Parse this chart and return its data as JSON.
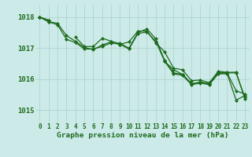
{
  "title": "Graphe pression niveau de la mer (hPa)",
  "hours": [
    0,
    1,
    2,
    3,
    4,
    5,
    6,
    7,
    8,
    9,
    10,
    11,
    12,
    13,
    14,
    15,
    16,
    17,
    18,
    19,
    20,
    21,
    22,
    23
  ],
  "ylim": [
    1014.6,
    1018.4
  ],
  "yticks": [
    1015,
    1016,
    1017,
    1018
  ],
  "bg_color": "#cceae8",
  "grid_color": "#aacfcc",
  "line_color": "#1e6b1e",
  "lines": [
    [
      1018.0,
      1017.85,
      1017.8,
      1017.4,
      1017.22,
      1017.02,
      1016.95,
      1017.1,
      1017.2,
      1017.15,
      1017.0,
      1017.5,
      1017.62,
      1017.3,
      1016.6,
      1016.2,
      1016.15,
      1015.85,
      1015.9,
      1015.85,
      1016.2,
      1016.2,
      1015.62,
      1015.52
    ],
    [
      1018.0,
      1017.85,
      1017.75,
      1017.28,
      1017.18,
      1016.97,
      1016.97,
      1017.05,
      1017.17,
      1017.12,
      1016.97,
      1017.47,
      1017.52,
      1017.22,
      1016.57,
      1016.17,
      1016.12,
      1015.82,
      1015.87,
      1015.82,
      1016.17,
      1016.17,
      1015.32,
      1015.47
    ],
    [
      1018.0,
      1017.9,
      null,
      null,
      1017.35,
      1017.05,
      1017.05,
      1017.32,
      1017.22,
      1017.12,
      1017.2,
      1017.55,
      1017.55,
      1017.17,
      1016.88,
      1016.35,
      1016.3,
      1015.95,
      1015.97,
      1015.88,
      1016.25,
      1016.22,
      1016.22,
      1015.35
    ],
    [
      1018.0,
      1017.9,
      null,
      null,
      null,
      null,
      null,
      null,
      null,
      null,
      null,
      null,
      null,
      null,
      1016.57,
      1016.3,
      1016.15,
      1015.85,
      1015.9,
      1015.85,
      1016.2,
      1016.2,
      1016.2,
      1015.4
    ]
  ],
  "marker": "D",
  "marker_size": 2.2,
  "line_width": 0.9,
  "tick_fontsize": 5.5,
  "label_fontsize": 6.8,
  "ytick_fontsize": 6.5
}
